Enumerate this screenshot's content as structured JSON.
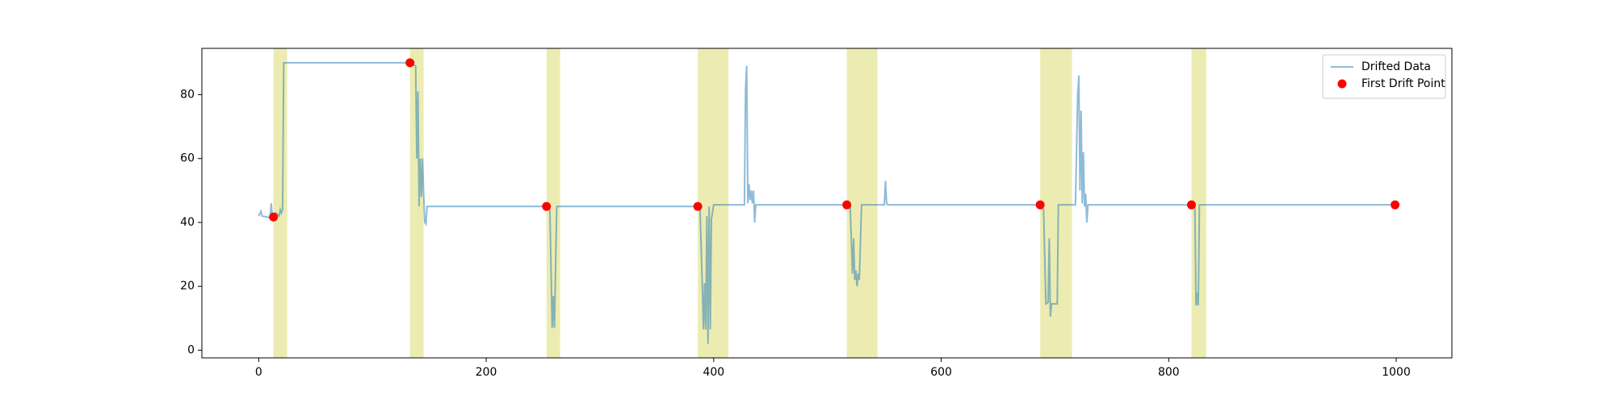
{
  "chart_data": {
    "type": "line",
    "xlim": [
      -49.95,
      1048.95
    ],
    "ylim": [
      -2.4,
      94.5
    ],
    "xticks": [
      0,
      200,
      400,
      600,
      800,
      1000
    ],
    "yticks": [
      0,
      20,
      40,
      60,
      80
    ],
    "legend": "upper right",
    "span_color": "#bfbf00",
    "drift_spans": [
      [
        13,
        25
      ],
      [
        133,
        145
      ],
      [
        253,
        265
      ],
      [
        386,
        413
      ],
      [
        517,
        544
      ],
      [
        687,
        715
      ],
      [
        820,
        833
      ]
    ],
    "series": [
      {
        "name": "Drifted Data",
        "type": "line",
        "color": "#1f77b4",
        "x": [
          0,
          2,
          3,
          10,
          11,
          12,
          15,
          18,
          19,
          20,
          21,
          22,
          130,
          133,
          138,
          139,
          140,
          141,
          142,
          143,
          144,
          145,
          146,
          147,
          148,
          250,
          253,
          256,
          258,
          259,
          260,
          262,
          385,
          388,
          390,
          391,
          392,
          393,
          394,
          395,
          396,
          397,
          398,
          400,
          427,
          428,
          429,
          430,
          431,
          432,
          433,
          434,
          435,
          436,
          437,
          517,
          520,
          522,
          523,
          524,
          525,
          526,
          527,
          528,
          530,
          550,
          551,
          552,
          553,
          687,
          690,
          692,
          694,
          695,
          696,
          697,
          702,
          703,
          718,
          720,
          721,
          722,
          723,
          724,
          725,
          726,
          727,
          728,
          729,
          820,
          823,
          824,
          825,
          826,
          827,
          999
        ],
        "values": [
          42,
          43.5,
          42,
          41.5,
          46,
          42,
          43,
          42,
          44,
          43,
          44,
          90,
          90,
          90,
          89,
          60,
          81,
          45,
          60,
          48,
          60,
          49,
          40,
          39.5,
          45,
          45,
          45,
          44,
          7,
          17,
          7,
          45,
          45,
          44,
          20,
          6.5,
          21,
          6.5,
          42,
          2,
          45,
          6.5,
          41,
          45.5,
          45.5,
          82,
          89,
          46,
          52,
          47,
          50,
          46,
          50,
          40,
          45.5,
          45.5,
          45,
          24,
          35,
          22,
          25,
          20,
          24,
          22,
          45.5,
          45.5,
          53,
          46,
          45.5,
          45.5,
          44,
          14.5,
          15,
          35,
          10.5,
          14.5,
          14.5,
          45.5,
          45.5,
          80,
          86,
          50,
          75,
          46,
          62,
          45,
          49,
          40,
          45.5,
          45.5,
          45,
          14,
          18,
          14,
          45.5,
          45.5
        ]
      },
      {
        "name": "First Drift Point",
        "type": "scatter",
        "color": "#ff0000",
        "x": [
          13,
          133,
          253,
          386,
          517,
          687,
          820,
          999
        ],
        "values": [
          41.7,
          90,
          45,
          45,
          45.5,
          45.5,
          45.5,
          45.5
        ]
      }
    ]
  }
}
